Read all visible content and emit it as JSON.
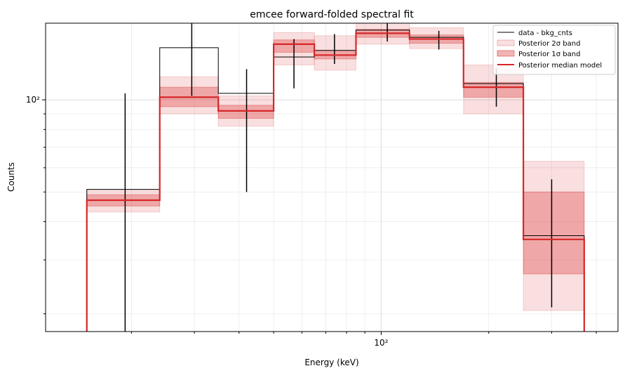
{
  "chart_data": {
    "type": "step",
    "title": "emcee forward-folded spectral fit",
    "xlabel": "Energy (keV)",
    "ylabel": "Counts",
    "xscale": "log",
    "yscale": "log",
    "xlim": [
      11.5,
      460
    ],
    "ylim": [
      17.5,
      178
    ],
    "grid": true,
    "legend_position": "top-right",
    "x_tick_labels": [
      {
        "value": 100,
        "label": "10²"
      }
    ],
    "y_tick_labels": [
      {
        "value": 100,
        "label": "10²"
      }
    ],
    "bin_edges": [
      15,
      24,
      35,
      50,
      65,
      85,
      120,
      170,
      250,
      370
    ],
    "series": [
      {
        "name": "data - bkg_cnts",
        "color": "#000000",
        "values": [
          51,
          148,
          105,
          138,
          145,
          169,
          160,
          113,
          36
        ],
        "error_x": [
          19.2,
          29.5,
          42,
          57,
          74,
          104,
          145,
          210,
          300
        ],
        "error_low": [
          17.5,
          103,
          50,
          109,
          131,
          155,
          146,
          95,
          21
        ],
        "error_high": [
          105,
          192,
          126,
          158,
          164,
          183,
          168,
          127,
          55
        ]
      },
      {
        "name": "Posterior median model",
        "color": "#d62728",
        "values": [
          47,
          102,
          92,
          152,
          140,
          165,
          158,
          110,
          35
        ]
      }
    ],
    "bands": [
      {
        "name": "Posterior 2σ band",
        "color": "#d62728",
        "opacity": 0.15,
        "low": [
          43,
          90,
          82,
          130,
          125,
          152,
          147,
          90,
          20.5
        ],
        "high": [
          51,
          119,
          103,
          166,
          162,
          180,
          172,
          130,
          63
        ]
      },
      {
        "name": "Posterior 1σ band",
        "color": "#d62728",
        "opacity": 0.3,
        "low": [
          45,
          95,
          87,
          143,
          136,
          160,
          153,
          102,
          27
        ],
        "high": [
          49,
          110,
          96,
          157,
          145,
          170,
          163,
          114,
          50
        ]
      }
    ]
  }
}
